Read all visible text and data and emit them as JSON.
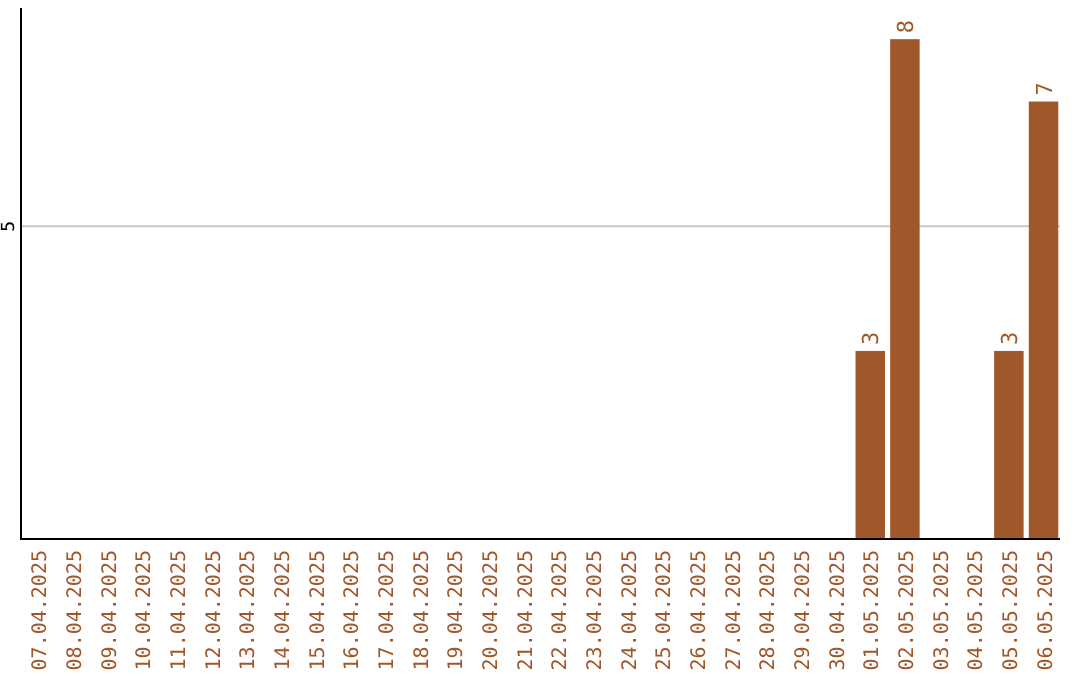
{
  "chart_data": {
    "type": "bar",
    "categories": [
      "07.04.2025",
      "08.04.2025",
      "09.04.2025",
      "10.04.2025",
      "11.04.2025",
      "12.04.2025",
      "13.04.2025",
      "14.04.2025",
      "15.04.2025",
      "16.04.2025",
      "17.04.2025",
      "18.04.2025",
      "19.04.2025",
      "20.04.2025",
      "21.04.2025",
      "22.04.2025",
      "23.04.2025",
      "24.04.2025",
      "25.04.2025",
      "26.04.2025",
      "27.04.2025",
      "28.04.2025",
      "29.04.2025",
      "30.04.2025",
      "01.05.2025",
      "02.05.2025",
      "03.05.2025",
      "04.05.2025",
      "05.05.2025",
      "06.05.2025"
    ],
    "values": [
      null,
      null,
      null,
      null,
      null,
      null,
      null,
      null,
      null,
      null,
      null,
      null,
      null,
      null,
      null,
      null,
      null,
      null,
      null,
      null,
      null,
      null,
      null,
      null,
      3,
      8,
      null,
      null,
      3,
      7
    ],
    "data_labels": true,
    "color": "#a0572a",
    "ylim": [
      0,
      8.5
    ],
    "yticks": [
      5
    ],
    "grid": "y"
  }
}
